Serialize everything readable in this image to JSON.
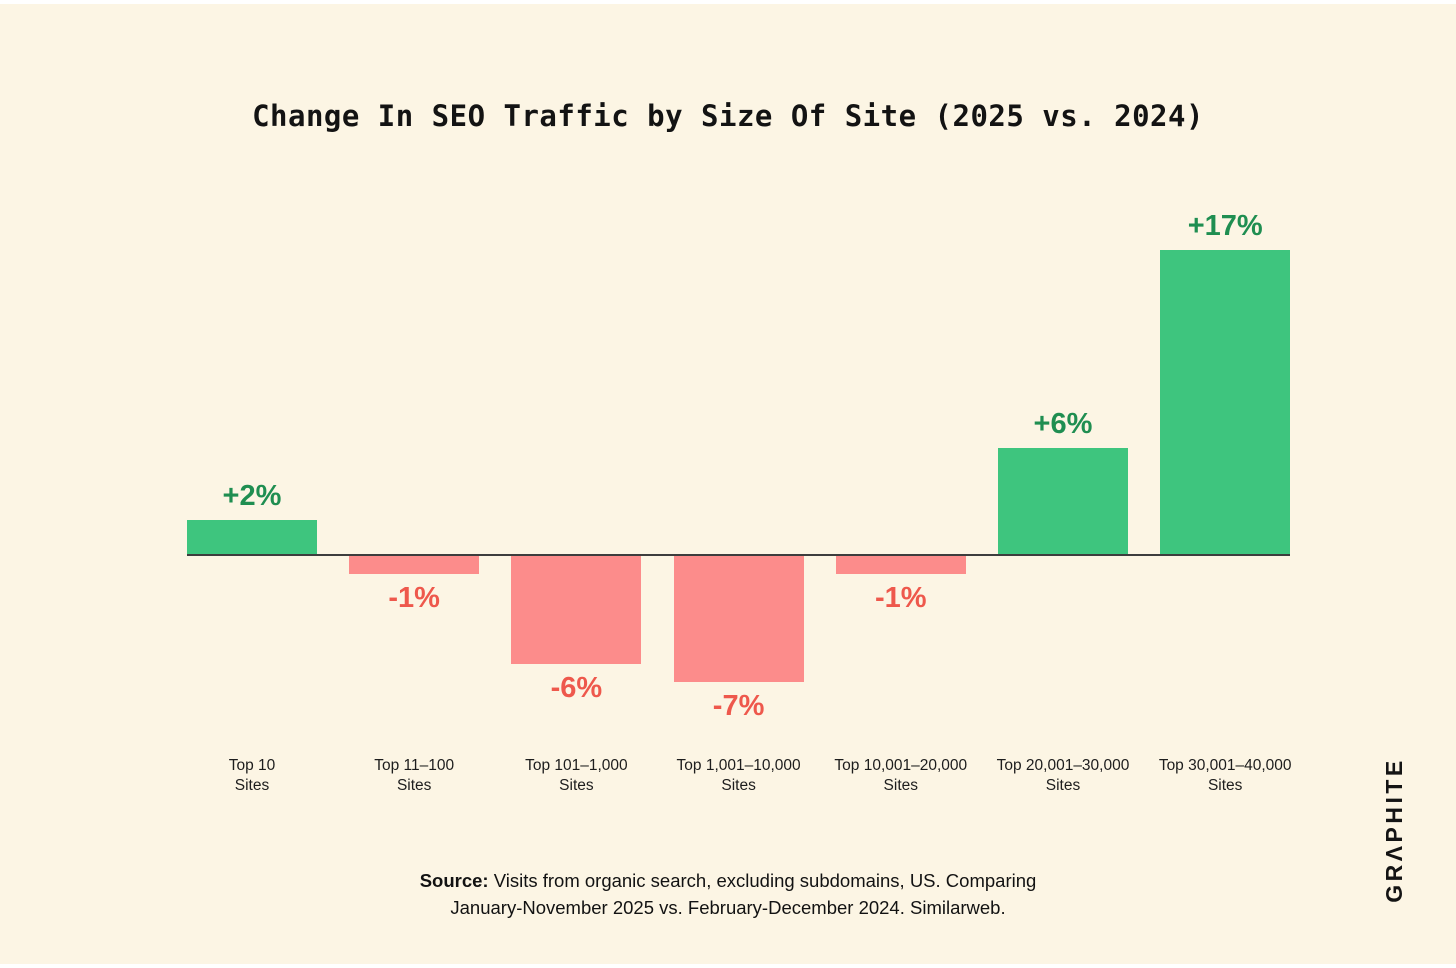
{
  "title": "Change In SEO Traffic by Size Of Site (2025 vs. 2024)",
  "chart_data": {
    "type": "bar",
    "categories": [
      "Top 10",
      "Top 11–100",
      "Top 101–1,000",
      "Top 1,001–10,000",
      "Top 10,001–20,000",
      "Top 20,001–30,000",
      "Top 30,001–40,000"
    ],
    "category_suffix_line": "Sites",
    "values": [
      2,
      -1,
      -6,
      -7,
      -1,
      6,
      17
    ],
    "value_labels": [
      "+2%",
      "-1%",
      "-6%",
      "-7%",
      "-1%",
      "+6%",
      "+17%"
    ],
    "unit": "%",
    "title": "Change In SEO Traffic by Size Of Site (2025 vs. 2024)",
    "xlabel": "",
    "ylabel": "",
    "ylim": [
      -8,
      18
    ],
    "baseline": 0,
    "grid": false,
    "legend": false
  },
  "source": {
    "label": "Source:",
    "line1": " Visits from organic search, excluding subdomains, US. Comparing",
    "line2": "January-November 2025 vs. February-December 2024. Similarweb."
  },
  "logo": {
    "text": "GRΛPHITE"
  },
  "colors": {
    "background": "#FCF5E4",
    "positive_bar": "#3EC57E",
    "negative_bar": "#FC8C8B",
    "positive_label": "#1F8E51",
    "negative_label": "#EE584C",
    "baseline": "#3D3D3D",
    "text": "#161616"
  }
}
